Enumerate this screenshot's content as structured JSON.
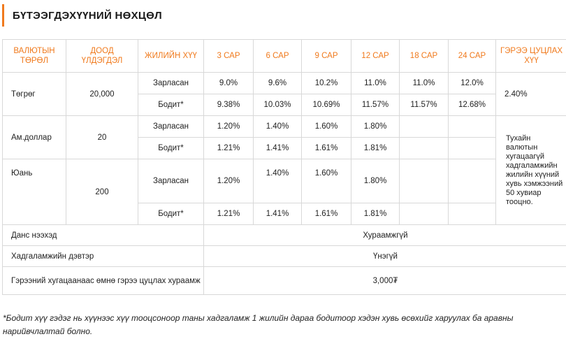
{
  "title": "БҮТЭЭГДЭХҮҮНИЙ НӨХЦӨЛ",
  "header": {
    "currency": "ВАЛЮТЫН ТӨРӨЛ",
    "min_balance": "ДООД ҮЛДЭГДЭЛ",
    "annual_rate": "ЖИЛИЙН ХҮҮ",
    "m3": "3 САР",
    "m6": "6 САР",
    "m9": "9 САР",
    "m12": "12 САР",
    "m18": "18 САР",
    "m24": "24 САР",
    "early": "ГЭРЭЭ ЦУЦЛАХ ХҮҮ"
  },
  "rows": {
    "tugrug": {
      "currency": "Төгрөг",
      "min": "20,000",
      "announced": {
        "label": "Зарласан",
        "m3": "9.0%",
        "m6": "9.6%",
        "m9": "10.2%",
        "m12": "11.0%",
        "m18": "11.0%",
        "m24": "12.0%"
      },
      "effective": {
        "label": "Бодит*",
        "m3": "9.38%",
        "m6": "10.03%",
        "m9": "10.69%",
        "m12": "11.57%",
        "m18": "11.57%",
        "m24": "12.68%"
      },
      "early_rate": "2.40%"
    },
    "usd": {
      "currency": "Ам.доллар",
      "min": "20",
      "announced": {
        "label": "Зарласан",
        "m3": "1.20%",
        "m6": "1.40%",
        "m9": "1.60%",
        "m12": "1.80%"
      },
      "effective": {
        "label": "Бодит*",
        "m3": "1.21%",
        "m6": "1.41%",
        "m9": "1.61%",
        "m12": "1.81%"
      }
    },
    "yuan": {
      "currency": "Юань",
      "min": "200",
      "announced": {
        "label": "Зарласан",
        "m3": "1.20%",
        "m6": "1.40%",
        "m9": "1.60%",
        "m12": "1.80%"
      },
      "effective": {
        "label": "Бодит*",
        "m3": "1.21%",
        "m6": "1.41%",
        "m9": "1.61%",
        "m12": "1.81%"
      }
    },
    "early_note": "Тухайн валютын хугацаагүй хадгаламжийн жилийн хүүний хувь хэмжээний 50 хувиар тооцно."
  },
  "fees": {
    "account_fee": {
      "label": "Данс нээхэд",
      "value": "Хураамжгүй"
    },
    "passbook": {
      "label": "Хадгаламжийн дэвтэр",
      "value": "Үнэгүй"
    },
    "early_fee": {
      "label": "Гэрээний хугацаанаас өмнө гэрээ цуцлах хураамж",
      "value": "3,000₮"
    }
  },
  "footnote": "*Бодит хүү гэдэг нь хүүнээс хүү тооцсоноор таны хадгаламж 1 жилийн дараа бодитоор хэдэн хувь өсөхийг харуулах ба аравны нарийвчлалтай болно."
}
